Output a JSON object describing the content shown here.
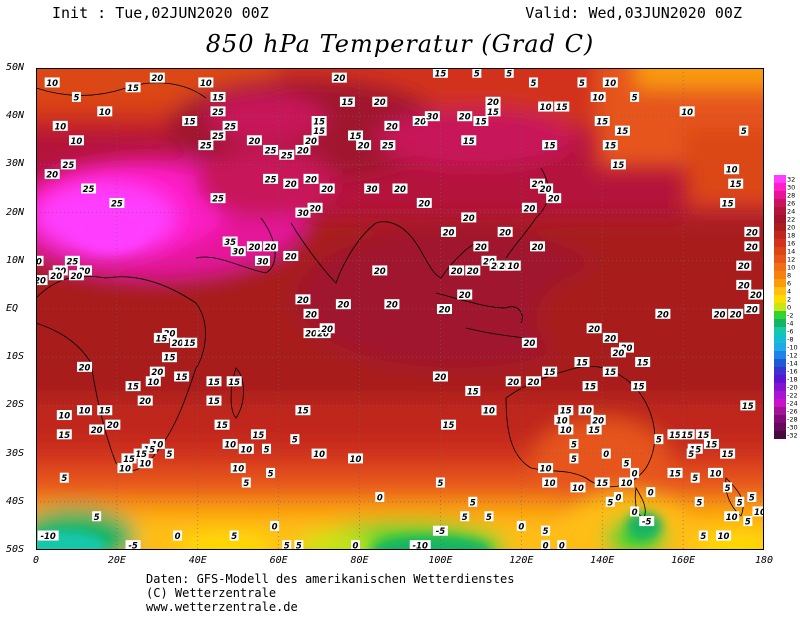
{
  "header": {
    "init": "Init : Tue,02JUN2020 00Z",
    "valid": "Valid: Wed,03JUN2020 00Z",
    "title": "850 hPa Temperatur (Grad C)"
  },
  "axes": {
    "lat_labels": [
      "50N",
      "40N",
      "30N",
      "20N",
      "10N",
      "EQ",
      "10S",
      "20S",
      "30S",
      "40S",
      "50S"
    ],
    "lon_labels": [
      "0",
      "20E",
      "40E",
      "60E",
      "80E",
      "100E",
      "120E",
      "140E",
      "160E",
      "180"
    ]
  },
  "credits": [
    "Daten: GFS-Modell des amerikanischen Wetterdienstes",
    "(C) Wetterzentrale",
    "www.wetterzentrale.de"
  ],
  "legend": {
    "labels": [
      "32",
      "30",
      "28",
      "26",
      "24",
      "22",
      "20",
      "18",
      "16",
      "14",
      "12",
      "10",
      "8",
      "6",
      "4",
      "2",
      "0",
      "-2",
      "-4",
      "-6",
      "-8",
      "-10",
      "-12",
      "-14",
      "-16",
      "-18",
      "-20",
      "-22",
      "-24",
      "-26",
      "-28",
      "-30",
      "-32"
    ],
    "colors": [
      "#ff3cff",
      "#ff1ec8",
      "#e6149b",
      "#c8145a",
      "#b4143c",
      "#a0142d",
      "#a81e1e",
      "#c0281e",
      "#d2321e",
      "#dc4614",
      "#e6551e",
      "#f06e14",
      "#f5820f",
      "#fa9b0a",
      "#ffbe14",
      "#ffdc00",
      "#c8e614",
      "#32d232",
      "#14b464",
      "#14c8aa",
      "#14bed2",
      "#1eaae6",
      "#1e82e6",
      "#1e5ad2",
      "#3c32d2",
      "#5a14d2",
      "#8214d2",
      "#aa14d2",
      "#c814c8",
      "#a01496",
      "#820a78",
      "#640a5a",
      "#460a3c"
    ]
  },
  "chart_data": {
    "type": "map",
    "variable": "850 hPa Temperatur (Grad C)",
    "lat_range": [
      -50,
      50
    ],
    "lon_range": [
      0,
      180
    ],
    "contour_labels": [
      {
        "lat": 47,
        "lon": 4,
        "v": 10
      },
      {
        "lat": 44,
        "lon": 10,
        "v": 5
      },
      {
        "lat": 41,
        "lon": 17,
        "v": 10
      },
      {
        "lat": 38,
        "lon": 6,
        "v": 10
      },
      {
        "lat": 35,
        "lon": 10,
        "v": 10
      },
      {
        "lat": 46,
        "lon": 24,
        "v": 15
      },
      {
        "lat": 48,
        "lon": 30,
        "v": 20
      },
      {
        "lat": 47,
        "lon": 42,
        "v": 10
      },
      {
        "lat": 44,
        "lon": 45,
        "v": 15
      },
      {
        "lat": 39,
        "lon": 38,
        "v": 15
      },
      {
        "lat": 41,
        "lon": 45,
        "v": 25
      },
      {
        "lat": 38,
        "lon": 48,
        "v": 25
      },
      {
        "lat": 36,
        "lon": 45,
        "v": 25
      },
      {
        "lat": 34,
        "lon": 42,
        "v": 25
      },
      {
        "lat": 35,
        "lon": 54,
        "v": 20
      },
      {
        "lat": 33,
        "lon": 58,
        "v": 25
      },
      {
        "lat": 32,
        "lon": 62,
        "v": 25
      },
      {
        "lat": 33,
        "lon": 66,
        "v": 20
      },
      {
        "lat": 35,
        "lon": 68,
        "v": 20
      },
      {
        "lat": 37,
        "lon": 70,
        "v": 15
      },
      {
        "lat": 39,
        "lon": 70,
        "v": 15
      },
      {
        "lat": 43,
        "lon": 77,
        "v": 15
      },
      {
        "lat": 48,
        "lon": 75,
        "v": 20
      },
      {
        "lat": 43,
        "lon": 85,
        "v": 20
      },
      {
        "lat": 36,
        "lon": 79,
        "v": 15
      },
      {
        "lat": 34,
        "lon": 81,
        "v": 20
      },
      {
        "lat": 34,
        "lon": 87,
        "v": 25
      },
      {
        "lat": 38,
        "lon": 88,
        "v": 20
      },
      {
        "lat": 39,
        "lon": 95,
        "v": 20
      },
      {
        "lat": 40,
        "lon": 98,
        "v": 30
      },
      {
        "lat": 40,
        "lon": 106,
        "v": 20
      },
      {
        "lat": 39,
        "lon": 110,
        "v": 15
      },
      {
        "lat": 35,
        "lon": 107,
        "v": 15
      },
      {
        "lat": 49,
        "lon": 100,
        "v": 15
      },
      {
        "lat": 49,
        "lon": 109,
        "v": 5
      },
      {
        "lat": 49,
        "lon": 117,
        "v": 5
      },
      {
        "lat": 47,
        "lon": 123,
        "v": 5
      },
      {
        "lat": 43,
        "lon": 113,
        "v": 20
      },
      {
        "lat": 41,
        "lon": 113,
        "v": 15
      },
      {
        "lat": 42,
        "lon": 126,
        "v": 10
      },
      {
        "lat": 42,
        "lon": 130,
        "v": 15
      },
      {
        "lat": 39,
        "lon": 140,
        "v": 15
      },
      {
        "lat": 37,
        "lon": 145,
        "v": 15
      },
      {
        "lat": 44,
        "lon": 139,
        "v": 10
      },
      {
        "lat": 47,
        "lon": 135,
        "v": 5
      },
      {
        "lat": 47,
        "lon": 142,
        "v": 10
      },
      {
        "lat": 44,
        "lon": 148,
        "v": 5
      },
      {
        "lat": 41,
        "lon": 161,
        "v": 10
      },
      {
        "lat": 37,
        "lon": 175,
        "v": 5
      },
      {
        "lat": 34,
        "lon": 127,
        "v": 15
      },
      {
        "lat": 34,
        "lon": 142,
        "v": 15
      },
      {
        "lat": 30,
        "lon": 144,
        "v": 15
      },
      {
        "lat": 29,
        "lon": 172,
        "v": 10
      },
      {
        "lat": 26,
        "lon": 173,
        "v": 15
      },
      {
        "lat": 22,
        "lon": 171,
        "v": 15
      },
      {
        "lat": 28,
        "lon": 4,
        "v": 20
      },
      {
        "lat": 30,
        "lon": 8,
        "v": 25
      },
      {
        "lat": 25,
        "lon": 13,
        "v": 25
      },
      {
        "lat": 22,
        "lon": 20,
        "v": 25
      },
      {
        "lat": 23,
        "lon": 45,
        "v": 25
      },
      {
        "lat": 27,
        "lon": 58,
        "v": 25
      },
      {
        "lat": 26,
        "lon": 63,
        "v": 20
      },
      {
        "lat": 27,
        "lon": 68,
        "v": 20
      },
      {
        "lat": 25,
        "lon": 72,
        "v": 20
      },
      {
        "lat": 21,
        "lon": 69,
        "v": 20
      },
      {
        "lat": 20,
        "lon": 66,
        "v": 30
      },
      {
        "lat": 25,
        "lon": 83,
        "v": 30
      },
      {
        "lat": 25,
        "lon": 90,
        "v": 20
      },
      {
        "lat": 22,
        "lon": 96,
        "v": 20
      },
      {
        "lat": 19,
        "lon": 107,
        "v": 20
      },
      {
        "lat": 16,
        "lon": 102,
        "v": 20
      },
      {
        "lat": 21,
        "lon": 122,
        "v": 20
      },
      {
        "lat": 26,
        "lon": 124,
        "v": 20
      },
      {
        "lat": 23,
        "lon": 128,
        "v": 20
      },
      {
        "lat": 25,
        "lon": 126,
        "v": 20
      },
      {
        "lat": 13,
        "lon": 124,
        "v": 20
      },
      {
        "lat": 13,
        "lon": 110,
        "v": 20
      },
      {
        "lat": 16,
        "lon": 116,
        "v": 20
      },
      {
        "lat": 10,
        "lon": 112,
        "v": 20
      },
      {
        "lat": 9,
        "lon": 114,
        "v": 20
      },
      {
        "lat": 8,
        "lon": 108,
        "v": 20
      },
      {
        "lat": 8,
        "lon": 104,
        "v": 20
      },
      {
        "lat": 9,
        "lon": 116,
        "v": 20
      },
      {
        "lat": 9,
        "lon": 118,
        "v": 10
      },
      {
        "lat": 3,
        "lon": 106,
        "v": 20
      },
      {
        "lat": 0,
        "lon": 101,
        "v": 20
      },
      {
        "lat": 1,
        "lon": 88,
        "v": 20
      },
      {
        "lat": 1,
        "lon": 76,
        "v": 20
      },
      {
        "lat": 2,
        "lon": 66,
        "v": 20
      },
      {
        "lat": -1,
        "lon": 68,
        "v": 20
      },
      {
        "lat": -5,
        "lon": 68,
        "v": 20
      },
      {
        "lat": -5,
        "lon": 71,
        "v": 20
      },
      {
        "lat": -4,
        "lon": 72,
        "v": 20
      },
      {
        "lat": 8,
        "lon": 85,
        "v": 20
      },
      {
        "lat": 11,
        "lon": 63,
        "v": 20
      },
      {
        "lat": 13,
        "lon": 58,
        "v": 20
      },
      {
        "lat": 13,
        "lon": 54,
        "v": 20
      },
      {
        "lat": 14,
        "lon": 48,
        "v": 35
      },
      {
        "lat": 12,
        "lon": 50,
        "v": 30
      },
      {
        "lat": 10,
        "lon": 56,
        "v": 30
      },
      {
        "lat": 10,
        "lon": 9,
        "v": 25
      },
      {
        "lat": 8,
        "lon": 12,
        "v": 20
      },
      {
        "lat": 7,
        "lon": 10,
        "v": 20
      },
      {
        "lat": 8,
        "lon": 6,
        "v": 20
      },
      {
        "lat": 6,
        "lon": 1,
        "v": 20
      },
      {
        "lat": 10,
        "lon": 0,
        "v": 10
      },
      {
        "lat": 7,
        "lon": 5,
        "v": 20
      },
      {
        "lat": -5,
        "lon": 33,
        "v": 20
      },
      {
        "lat": -6,
        "lon": 31,
        "v": 15
      },
      {
        "lat": -7,
        "lon": 35,
        "v": 20
      },
      {
        "lat": -7,
        "lon": 38,
        "v": 15
      },
      {
        "lat": -10,
        "lon": 33,
        "v": 15
      },
      {
        "lat": -13,
        "lon": 30,
        "v": 20
      },
      {
        "lat": -14,
        "lon": 36,
        "v": 15
      },
      {
        "lat": -12,
        "lon": 12,
        "v": 20
      },
      {
        "lat": -16,
        "lon": 24,
        "v": 15
      },
      {
        "lat": -21,
        "lon": 12,
        "v": 10
      },
      {
        "lat": -21,
        "lon": 17,
        "v": 15
      },
      {
        "lat": -24,
        "lon": 19,
        "v": 20
      },
      {
        "lat": -25,
        "lon": 15,
        "v": 20
      },
      {
        "lat": -15,
        "lon": 29,
        "v": 10
      },
      {
        "lat": -19,
        "lon": 27,
        "v": 20
      },
      {
        "lat": -22,
        "lon": 7,
        "v": 10
      },
      {
        "lat": -26,
        "lon": 7,
        "v": 15
      },
      {
        "lat": -28,
        "lon": 30,
        "v": 10
      },
      {
        "lat": -29,
        "lon": 28,
        "v": 15
      },
      {
        "lat": -30,
        "lon": 26,
        "v": 15
      },
      {
        "lat": -31,
        "lon": 23,
        "v": 15
      },
      {
        "lat": -33,
        "lon": 22,
        "v": 10
      },
      {
        "lat": -32,
        "lon": 27,
        "v": 10
      },
      {
        "lat": -30,
        "lon": 33,
        "v": 5
      },
      {
        "lat": -35,
        "lon": 7,
        "v": 5
      },
      {
        "lat": -15,
        "lon": 44,
        "v": 15
      },
      {
        "lat": -19,
        "lon": 44,
        "v": 15
      },
      {
        "lat": -15,
        "lon": 49,
        "v": 15
      },
      {
        "lat": -24,
        "lon": 46,
        "v": 15
      },
      {
        "lat": -28,
        "lon": 48,
        "v": 10
      },
      {
        "lat": -26,
        "lon": 55,
        "v": 15
      },
      {
        "lat": -29,
        "lon": 52,
        "v": 10
      },
      {
        "lat": -29,
        "lon": 57,
        "v": 5
      },
      {
        "lat": -27,
        "lon": 64,
        "v": 5
      },
      {
        "lat": -33,
        "lon": 50,
        "v": 10
      },
      {
        "lat": -34,
        "lon": 58,
        "v": 5
      },
      {
        "lat": -36,
        "lon": 52,
        "v": 5
      },
      {
        "lat": -14,
        "lon": 100,
        "v": 20
      },
      {
        "lat": -17,
        "lon": 108,
        "v": 15
      },
      {
        "lat": -21,
        "lon": 66,
        "v": 15
      },
      {
        "lat": -30,
        "lon": 70,
        "v": 10
      },
      {
        "lat": -31,
        "lon": 79,
        "v": 10
      },
      {
        "lat": -39,
        "lon": 85,
        "v": 0
      },
      {
        "lat": -36,
        "lon": 100,
        "v": 5
      },
      {
        "lat": -40,
        "lon": 108,
        "v": 5
      },
      {
        "lat": -43,
        "lon": 106,
        "v": 5
      },
      {
        "lat": -43,
        "lon": 112,
        "v": 5
      },
      {
        "lat": -45,
        "lon": 120,
        "v": 0
      },
      {
        "lat": -24,
        "lon": 102,
        "v": 15
      },
      {
        "lat": -21,
        "lon": 112,
        "v": 10
      },
      {
        "lat": -15,
        "lon": 118,
        "v": 20
      },
      {
        "lat": -15,
        "lon": 123,
        "v": 20
      },
      {
        "lat": -13,
        "lon": 127,
        "v": 15
      },
      {
        "lat": -7,
        "lon": 122,
        "v": 20
      },
      {
        "lat": -4,
        "lon": 138,
        "v": 20
      },
      {
        "lat": -6,
        "lon": 142,
        "v": 20
      },
      {
        "lat": -8,
        "lon": 146,
        "v": 20
      },
      {
        "lat": -9,
        "lon": 144,
        "v": 20
      },
      {
        "lat": -11,
        "lon": 135,
        "v": 15
      },
      {
        "lat": -13,
        "lon": 142,
        "v": 15
      },
      {
        "lat": -16,
        "lon": 137,
        "v": 15
      },
      {
        "lat": -16,
        "lon": 149,
        "v": 15
      },
      {
        "lat": -21,
        "lon": 131,
        "v": 15
      },
      {
        "lat": -21,
        "lon": 136,
        "v": 10
      },
      {
        "lat": -23,
        "lon": 130,
        "v": 10
      },
      {
        "lat": -23,
        "lon": 139,
        "v": 20
      },
      {
        "lat": -25,
        "lon": 138,
        "v": 15
      },
      {
        "lat": -25,
        "lon": 131,
        "v": 10
      },
      {
        "lat": -28,
        "lon": 133,
        "v": 5
      },
      {
        "lat": -31,
        "lon": 133,
        "v": 5
      },
      {
        "lat": -30,
        "lon": 141,
        "v": 0
      },
      {
        "lat": -32,
        "lon": 146,
        "v": 5
      },
      {
        "lat": -34,
        "lon": 148,
        "v": 0
      },
      {
        "lat": -33,
        "lon": 126,
        "v": 10
      },
      {
        "lat": -36,
        "lon": 127,
        "v": 10
      },
      {
        "lat": -37,
        "lon": 134,
        "v": 10
      },
      {
        "lat": -36,
        "lon": 140,
        "v": 15
      },
      {
        "lat": -36,
        "lon": 146,
        "v": 10
      },
      {
        "lat": -38,
        "lon": 152,
        "v": 0
      },
      {
        "lat": -39,
        "lon": 144,
        "v": 0
      },
      {
        "lat": -40,
        "lon": 142,
        "v": 5
      },
      {
        "lat": -42,
        "lon": 148,
        "v": 0
      },
      {
        "lat": -44,
        "lon": 151,
        "v": -5
      },
      {
        "lat": -27,
        "lon": 154,
        "v": 5
      },
      {
        "lat": -26,
        "lon": 158,
        "v": 15
      },
      {
        "lat": -26,
        "lon": 161,
        "v": 15
      },
      {
        "lat": -26,
        "lon": 165,
        "v": 15
      },
      {
        "lat": -29,
        "lon": 163,
        "v": 15
      },
      {
        "lat": -28,
        "lon": 167,
        "v": 15
      },
      {
        "lat": -30,
        "lon": 171,
        "v": 15
      },
      {
        "lat": -34,
        "lon": 168,
        "v": 10
      },
      {
        "lat": -37,
        "lon": 171,
        "v": 5
      },
      {
        "lat": -35,
        "lon": 163,
        "v": 5
      },
      {
        "lat": -39,
        "lon": 177,
        "v": 5
      },
      {
        "lat": -40,
        "lon": 174,
        "v": 5
      },
      {
        "lat": -43,
        "lon": 172,
        "v": 10
      },
      {
        "lat": -44,
        "lon": 176,
        "v": 5
      },
      {
        "lat": -47,
        "lon": 170,
        "v": 10
      },
      {
        "lat": -47,
        "lon": 165,
        "v": 5
      },
      {
        "lat": -42,
        "lon": 179,
        "v": 10
      },
      {
        "lat": -47,
        "lon": 3,
        "v": -10
      },
      {
        "lat": -49,
        "lon": 24,
        "v": -5
      },
      {
        "lat": -47,
        "lon": 35,
        "v": 0
      },
      {
        "lat": -47,
        "lon": 49,
        "v": 5
      },
      {
        "lat": -49,
        "lon": 62,
        "v": 5
      },
      {
        "lat": -49,
        "lon": 65,
        "v": 5
      },
      {
        "lat": -49,
        "lon": 79,
        "v": 0
      },
      {
        "lat": -49,
        "lon": 95,
        "v": -10
      },
      {
        "lat": -46,
        "lon": 100,
        "v": -5
      },
      {
        "lat": -49,
        "lon": 126,
        "v": 0
      },
      {
        "lat": -49,
        "lon": 130,
        "v": 0
      },
      {
        "lat": -46,
        "lon": 126,
        "v": 5
      },
      {
        "lat": -1,
        "lon": 155,
        "v": 20
      },
      {
        "lat": -1,
        "lon": 169,
        "v": 20
      },
      {
        "lat": -1,
        "lon": 173,
        "v": 20
      },
      {
        "lat": 0,
        "lon": 177,
        "v": 20
      },
      {
        "lat": 5,
        "lon": 175,
        "v": 20
      },
      {
        "lat": 3,
        "lon": 178,
        "v": 20
      },
      {
        "lat": 9,
        "lon": 175,
        "v": 20
      },
      {
        "lat": 13,
        "lon": 177,
        "v": 20
      },
      {
        "lat": 16,
        "lon": 177,
        "v": 20
      },
      {
        "lat": -20,
        "lon": 176,
        "v": 15
      },
      {
        "lat": -11,
        "lon": 150,
        "v": 15
      },
      {
        "lat": -40,
        "lon": 164,
        "v": 5
      },
      {
        "lat": -30,
        "lon": 162,
        "v": 5
      },
      {
        "lat": -34,
        "lon": 158,
        "v": 15
      },
      {
        "lat": -45,
        "lon": 59,
        "v": 0
      },
      {
        "lat": -43,
        "lon": 15,
        "v": 5
      }
    ]
  }
}
